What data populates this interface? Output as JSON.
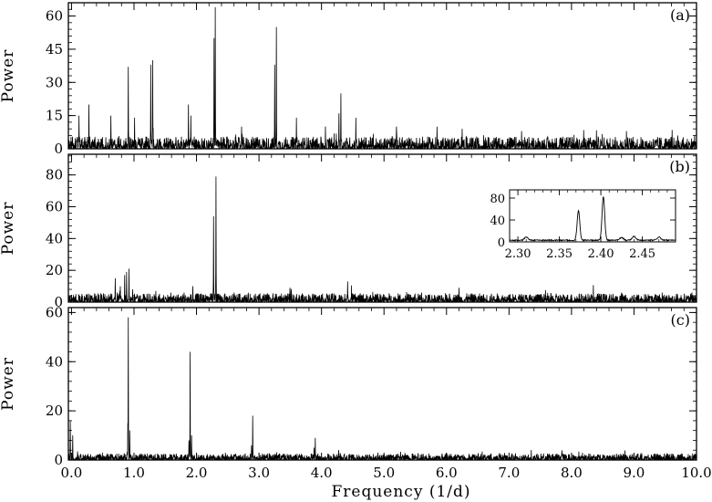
{
  "figure": {
    "xlabel": "Frequency (1/d)"
  },
  "chart_data": [
    {
      "type": "line",
      "panel_label": "(a)",
      "ylabel": "Power",
      "xlim": [
        -0.05,
        10.0
      ],
      "ylim": [
        0,
        66
      ],
      "xticks": [
        "0.0",
        "1.0",
        "2.0",
        "3.0",
        "4.0",
        "5.0",
        "6.0",
        "7.0",
        "8.0",
        "9.0",
        "10.0"
      ],
      "xtick_values": [
        0,
        1,
        2,
        3,
        4,
        5,
        6,
        7,
        8,
        9,
        10
      ],
      "yticks": [
        "0",
        "15",
        "30",
        "45",
        "60"
      ],
      "ytick_values": [
        0,
        15,
        30,
        45,
        60
      ],
      "noise_level": 2.5,
      "peaks": [
        {
          "x": 0.12,
          "y": 15
        },
        {
          "x": 0.28,
          "y": 20
        },
        {
          "x": 0.63,
          "y": 15
        },
        {
          "x": 0.91,
          "y": 37
        },
        {
          "x": 1.01,
          "y": 14
        },
        {
          "x": 1.27,
          "y": 38
        },
        {
          "x": 1.3,
          "y": 40
        },
        {
          "x": 1.87,
          "y": 20
        },
        {
          "x": 1.91,
          "y": 15
        },
        {
          "x": 2.28,
          "y": 50
        },
        {
          "x": 2.3,
          "y": 64
        },
        {
          "x": 2.72,
          "y": 10
        },
        {
          "x": 3.25,
          "y": 38
        },
        {
          "x": 3.28,
          "y": 55
        },
        {
          "x": 3.6,
          "y": 14
        },
        {
          "x": 4.28,
          "y": 16
        },
        {
          "x": 4.31,
          "y": 25
        },
        {
          "x": 4.55,
          "y": 14
        },
        {
          "x": 5.2,
          "y": 10
        },
        {
          "x": 5.85,
          "y": 10
        },
        {
          "x": 6.25,
          "y": 9
        },
        {
          "x": 7.2,
          "y": 8
        },
        {
          "x": 8.88,
          "y": 8
        },
        {
          "x": 9.7,
          "y": 6
        }
      ]
    },
    {
      "type": "line",
      "panel_label": "(b)",
      "ylabel": "Power",
      "xlim": [
        -0.05,
        10.0
      ],
      "ylim": [
        0,
        93
      ],
      "xticks": [
        "0.0",
        "1.0",
        "2.0",
        "3.0",
        "4.0",
        "5.0",
        "6.0",
        "7.0",
        "8.0",
        "9.0",
        "10.0"
      ],
      "xtick_values": [
        0,
        1,
        2,
        3,
        4,
        5,
        6,
        7,
        8,
        9,
        10
      ],
      "yticks": [
        "0",
        "20",
        "40",
        "60",
        "80"
      ],
      "ytick_values": [
        0,
        20,
        40,
        60,
        80
      ],
      "noise_level": 2.5,
      "peaks": [
        {
          "x": 0.7,
          "y": 15
        },
        {
          "x": 0.78,
          "y": 10
        },
        {
          "x": 0.85,
          "y": 17
        },
        {
          "x": 0.88,
          "y": 19
        },
        {
          "x": 0.92,
          "y": 21
        },
        {
          "x": 0.98,
          "y": 8
        },
        {
          "x": 1.35,
          "y": 7
        },
        {
          "x": 1.8,
          "y": 6
        },
        {
          "x": 2.275,
          "y": 54
        },
        {
          "x": 2.31,
          "y": 79
        },
        {
          "x": 2.6,
          "y": 6
        },
        {
          "x": 3.5,
          "y": 7
        },
        {
          "x": 4.42,
          "y": 13
        },
        {
          "x": 5.6,
          "y": 6
        },
        {
          "x": 6.2,
          "y": 9
        },
        {
          "x": 8.8,
          "y": 6
        },
        {
          "x": 9.45,
          "y": 6
        }
      ],
      "inset": {
        "xlim": [
          2.29,
          2.49
        ],
        "ylim": [
          0,
          95
        ],
        "xticks": [
          "2.30",
          "2.35",
          "2.40",
          "2.45"
        ],
        "xtick_values": [
          2.3,
          2.35,
          2.4,
          2.45
        ],
        "yticks": [
          "0",
          "40",
          "80"
        ],
        "ytick_values": [
          0,
          40,
          80
        ],
        "baseline": 2,
        "peaks": [
          {
            "x": 2.373,
            "y": 55
          },
          {
            "x": 2.403,
            "y": 80
          },
          {
            "x": 2.31,
            "y": 6
          },
          {
            "x": 2.425,
            "y": 5
          },
          {
            "x": 2.44,
            "y": 7
          },
          {
            "x": 2.47,
            "y": 6
          }
        ]
      }
    },
    {
      "type": "line",
      "panel_label": "(c)",
      "ylabel": "Power",
      "xlim": [
        -0.05,
        10.0
      ],
      "ylim": [
        0,
        62
      ],
      "xticks": [
        "0.0",
        "1.0",
        "2.0",
        "3.0",
        "4.0",
        "5.0",
        "6.0",
        "7.0",
        "8.0",
        "9.0",
        "10.0"
      ],
      "xtick_values": [
        0,
        1,
        2,
        3,
        4,
        5,
        6,
        7,
        8,
        9,
        10
      ],
      "yticks": [
        "0",
        "20",
        "40",
        "60"
      ],
      "ytick_values": [
        0,
        20,
        40,
        60
      ],
      "noise_level": 1.2,
      "peaks": [
        {
          "x": -0.02,
          "y": 16
        },
        {
          "x": 0.02,
          "y": 10
        },
        {
          "x": 0.9,
          "y": 15
        },
        {
          "x": 0.91,
          "y": 58
        },
        {
          "x": 0.93,
          "y": 12
        },
        {
          "x": 1.88,
          "y": 8
        },
        {
          "x": 1.9,
          "y": 44
        },
        {
          "x": 1.92,
          "y": 10
        },
        {
          "x": 2.88,
          "y": 6
        },
        {
          "x": 2.9,
          "y": 18
        },
        {
          "x": 3.88,
          "y": 5
        },
        {
          "x": 3.9,
          "y": 9
        },
        {
          "x": 4.9,
          "y": 3
        }
      ]
    }
  ]
}
